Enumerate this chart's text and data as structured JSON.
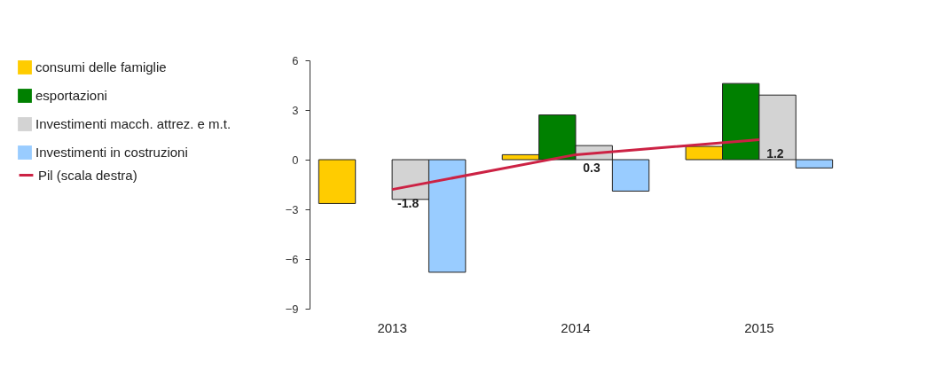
{
  "chart_data": {
    "type": "bar",
    "categories": [
      "2013",
      "2014",
      "2015"
    ],
    "series": [
      {
        "name": "consumi delle famiglie",
        "color": "#ffcc00",
        "values": [
          -2.65,
          0.3,
          0.8
        ]
      },
      {
        "name": "esportazioni",
        "color": "#008000",
        "values": [
          null,
          2.7,
          4.6
        ]
      },
      {
        "name": "Investimenti macch. attrez. e m.t.",
        "color": "#d3d3d3",
        "values": [
          -2.4,
          0.85,
          3.9
        ]
      },
      {
        "name": "Investimenti in costruzioni",
        "color": "#99ccff",
        "values": [
          -6.8,
          -1.9,
          -0.5
        ]
      },
      {
        "name": "Pil (scala destra)",
        "type": "line",
        "color": "#cc2244",
        "values": [
          -1.8,
          0.3,
          1.2
        ],
        "value_labels": [
          "-1.8",
          "0.3",
          "1.2"
        ]
      }
    ],
    "ylim": [
      -9,
      6
    ],
    "yticks": [
      -9,
      -6,
      -3,
      0,
      3,
      6
    ],
    "grid": false,
    "legend": "left"
  }
}
